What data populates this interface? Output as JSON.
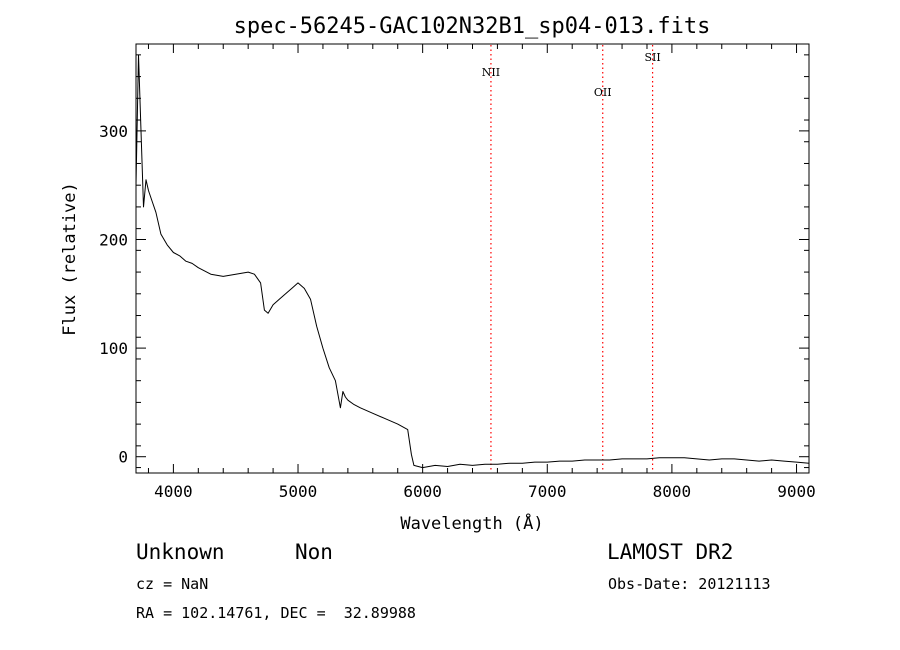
{
  "chart_data": {
    "type": "line",
    "title": "spec-56245-GAC102N32B1_sp04-013.fits",
    "xlabel": "Wavelength (Å)",
    "ylabel": "Flux (relative)",
    "xlim": [
      3700,
      9100
    ],
    "ylim": [
      -15,
      380
    ],
    "xticks": [
      4000,
      5000,
      6000,
      7000,
      8000,
      9000
    ],
    "yticks": [
      0,
      100,
      200,
      300
    ],
    "grid": false,
    "series": [
      {
        "color": "#000000",
        "x": [
          3700,
          3720,
          3740,
          3760,
          3780,
          3800,
          3830,
          3860,
          3900,
          3950,
          4000,
          4050,
          4100,
          4150,
          4200,
          4300,
          4400,
          4500,
          4600,
          4650,
          4700,
          4730,
          4760,
          4800,
          4850,
          4900,
          4950,
          5000,
          5050,
          5100,
          5150,
          5200,
          5250,
          5300,
          5340,
          5360,
          5380,
          5400,
          5450,
          5500,
          5600,
          5700,
          5800,
          5880,
          5910,
          5930,
          6000,
          6100,
          6200,
          6300,
          6400,
          6500,
          6600,
          6700,
          6800,
          6900,
          7000,
          7100,
          7200,
          7300,
          7400,
          7500,
          7600,
          7700,
          7800,
          7900,
          8000,
          8100,
          8200,
          8300,
          8400,
          8500,
          8600,
          8700,
          8800,
          8900,
          9000,
          9100
        ],
        "values": [
          250,
          370,
          300,
          230,
          255,
          245,
          235,
          225,
          205,
          195,
          188,
          185,
          180,
          178,
          174,
          168,
          166,
          168,
          170,
          168,
          160,
          135,
          132,
          140,
          145,
          150,
          155,
          160,
          155,
          145,
          120,
          100,
          82,
          70,
          45,
          60,
          55,
          52,
          48,
          45,
          40,
          35,
          30,
          25,
          2,
          -8,
          -10,
          -8,
          -9,
          -7,
          -8,
          -7,
          -7,
          -6,
          -6,
          -5,
          -5,
          -4,
          -4,
          -3,
          -3,
          -3,
          -2,
          -2,
          -2,
          -1,
          -1,
          -1,
          -2,
          -3,
          -2,
          -2,
          -3,
          -4,
          -3,
          -4,
          -5,
          -6
        ]
      }
    ],
    "emission_lines": [
      {
        "label": "NII",
        "x": 6548
      },
      {
        "label": "OII",
        "x": 7445
      },
      {
        "label": "SII",
        "x": 7845
      }
    ]
  },
  "info": {
    "class": "Unknown",
    "subclass": "Non",
    "survey": "LAMOST DR2",
    "cz": "cz = NaN",
    "obs_date": "Obs-Date: 20121113",
    "radec": "RA = 102.14761, DEC =  32.89988"
  },
  "colors": {
    "spectrum": "#000000",
    "marker": "#ff0000",
    "frame": "#000000"
  }
}
